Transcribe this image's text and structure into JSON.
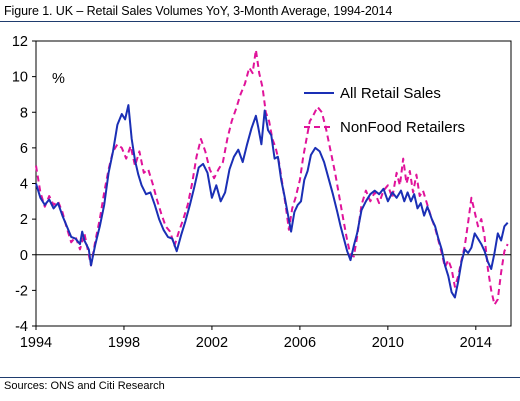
{
  "header": {
    "title": "Figure 1. UK – Retail Sales Volumes YoY, 3-Month Average, 1994-2014"
  },
  "footer": {
    "source": "Sources: ONS and Citi Research"
  },
  "chart_data": {
    "type": "line",
    "unit_label": "%",
    "xlim": [
      1994.0,
      2015.6
    ],
    "ylim": [
      -4,
      12
    ],
    "x_ticks": [
      1994,
      1998,
      2002,
      2006,
      2010,
      2014
    ],
    "y_ticks": [
      -4,
      -2,
      0,
      2,
      4,
      6,
      8,
      10,
      12
    ],
    "grid": false,
    "legend_position": "top-right",
    "series": [
      {
        "name": "All Retail Sales",
        "color": "#1a2fb5",
        "style": "solid",
        "points": [
          [
            1994.0,
            4.0
          ],
          [
            1994.2,
            3.2
          ],
          [
            1994.4,
            2.8
          ],
          [
            1994.6,
            3.1
          ],
          [
            1994.8,
            2.6
          ],
          [
            1995.0,
            2.9
          ],
          [
            1995.2,
            2.2
          ],
          [
            1995.4,
            1.6
          ],
          [
            1995.6,
            1.0
          ],
          [
            1995.8,
            0.9
          ],
          [
            1996.0,
            0.6
          ],
          [
            1996.1,
            1.3
          ],
          [
            1996.2,
            0.8
          ],
          [
            1996.4,
            0.3
          ],
          [
            1996.5,
            -0.6
          ],
          [
            1996.7,
            0.6
          ],
          [
            1996.9,
            1.6
          ],
          [
            1997.1,
            2.8
          ],
          [
            1997.3,
            4.6
          ],
          [
            1997.5,
            5.8
          ],
          [
            1997.7,
            7.3
          ],
          [
            1997.9,
            7.9
          ],
          [
            1998.05,
            7.6
          ],
          [
            1998.2,
            8.4
          ],
          [
            1998.35,
            6.5
          ],
          [
            1998.5,
            5.3
          ],
          [
            1998.65,
            4.5
          ],
          [
            1998.8,
            3.9
          ],
          [
            1999.0,
            3.4
          ],
          [
            1999.2,
            3.5
          ],
          [
            1999.4,
            2.8
          ],
          [
            1999.6,
            2.0
          ],
          [
            1999.8,
            1.4
          ],
          [
            2000.0,
            1.0
          ],
          [
            2000.2,
            0.9
          ],
          [
            2000.4,
            0.2
          ],
          [
            2000.6,
            1.1
          ],
          [
            2000.8,
            1.9
          ],
          [
            2001.0,
            2.8
          ],
          [
            2001.2,
            3.8
          ],
          [
            2001.4,
            4.9
          ],
          [
            2001.6,
            5.1
          ],
          [
            2001.8,
            4.6
          ],
          [
            2002.0,
            3.2
          ],
          [
            2002.2,
            3.9
          ],
          [
            2002.4,
            3.0
          ],
          [
            2002.6,
            3.5
          ],
          [
            2002.8,
            4.8
          ],
          [
            2003.0,
            5.5
          ],
          [
            2003.2,
            5.9
          ],
          [
            2003.4,
            5.2
          ],
          [
            2003.6,
            6.2
          ],
          [
            2003.8,
            7.1
          ],
          [
            2004.0,
            7.8
          ],
          [
            2004.1,
            7.2
          ],
          [
            2004.25,
            6.2
          ],
          [
            2004.4,
            8.1
          ],
          [
            2004.55,
            7.0
          ],
          [
            2004.7,
            6.7
          ],
          [
            2004.85,
            5.4
          ],
          [
            2005.0,
            5.5
          ],
          [
            2005.15,
            4.2
          ],
          [
            2005.3,
            3.3
          ],
          [
            2005.45,
            2.3
          ],
          [
            2005.6,
            1.3
          ],
          [
            2005.75,
            2.4
          ],
          [
            2005.9,
            2.8
          ],
          [
            2006.05,
            3.0
          ],
          [
            2006.2,
            4.2
          ],
          [
            2006.35,
            4.7
          ],
          [
            2006.5,
            5.6
          ],
          [
            2006.7,
            6.0
          ],
          [
            2006.9,
            5.8
          ],
          [
            2007.1,
            5.2
          ],
          [
            2007.3,
            4.3
          ],
          [
            2007.5,
            3.4
          ],
          [
            2007.7,
            2.4
          ],
          [
            2007.85,
            1.6
          ],
          [
            2008.0,
            0.9
          ],
          [
            2008.15,
            0.2
          ],
          [
            2008.3,
            -0.3
          ],
          [
            2008.45,
            0.5
          ],
          [
            2008.6,
            1.2
          ],
          [
            2008.8,
            2.5
          ],
          [
            2009.0,
            3.0
          ],
          [
            2009.2,
            3.4
          ],
          [
            2009.4,
            3.6
          ],
          [
            2009.6,
            3.4
          ],
          [
            2009.8,
            3.7
          ],
          [
            2010.0,
            3.0
          ],
          [
            2010.2,
            3.5
          ],
          [
            2010.4,
            3.2
          ],
          [
            2010.6,
            3.6
          ],
          [
            2010.75,
            3.0
          ],
          [
            2010.9,
            3.5
          ],
          [
            2011.05,
            3.0
          ],
          [
            2011.2,
            3.4
          ],
          [
            2011.35,
            2.6
          ],
          [
            2011.5,
            2.9
          ],
          [
            2011.65,
            2.2
          ],
          [
            2011.8,
            2.7
          ],
          [
            2012.0,
            2.0
          ],
          [
            2012.15,
            1.6
          ],
          [
            2012.3,
            0.9
          ],
          [
            2012.45,
            0.3
          ],
          [
            2012.6,
            -0.6
          ],
          [
            2012.75,
            -1.2
          ],
          [
            2012.9,
            -2.1
          ],
          [
            2013.05,
            -2.4
          ],
          [
            2013.2,
            -1.5
          ],
          [
            2013.35,
            -0.4
          ],
          [
            2013.5,
            0.3
          ],
          [
            2013.65,
            0.1
          ],
          [
            2013.8,
            0.4
          ],
          [
            2013.95,
            1.2
          ],
          [
            2014.1,
            0.9
          ],
          [
            2014.25,
            0.6
          ],
          [
            2014.4,
            0.2
          ],
          [
            2014.55,
            -0.4
          ],
          [
            2014.7,
            -0.8
          ],
          [
            2014.85,
            0.1
          ],
          [
            2015.0,
            1.2
          ],
          [
            2015.15,
            0.8
          ],
          [
            2015.3,
            1.6
          ],
          [
            2015.45,
            1.8
          ]
        ]
      },
      {
        "name": "NonFood Retailers",
        "color": "#e0139a",
        "style": "dashed",
        "points": [
          [
            1994.0,
            5.0
          ],
          [
            1994.2,
            3.5
          ],
          [
            1994.4,
            2.7
          ],
          [
            1994.6,
            3.3
          ],
          [
            1994.8,
            2.8
          ],
          [
            1995.0,
            3.0
          ],
          [
            1995.2,
            2.4
          ],
          [
            1995.4,
            1.5
          ],
          [
            1995.6,
            0.7
          ],
          [
            1995.8,
            1.0
          ],
          [
            1996.0,
            0.3
          ],
          [
            1996.2,
            1.2
          ],
          [
            1996.4,
            0.0
          ],
          [
            1996.5,
            -0.6
          ],
          [
            1996.7,
            0.8
          ],
          [
            1996.9,
            2.0
          ],
          [
            1997.1,
            3.5
          ],
          [
            1997.3,
            4.8
          ],
          [
            1997.5,
            5.8
          ],
          [
            1997.7,
            6.2
          ],
          [
            1997.9,
            6.0
          ],
          [
            1998.1,
            5.4
          ],
          [
            1998.3,
            6.1
          ],
          [
            1998.5,
            5.0
          ],
          [
            1998.7,
            5.8
          ],
          [
            1998.9,
            4.6
          ],
          [
            1999.1,
            4.8
          ],
          [
            1999.3,
            4.0
          ],
          [
            1999.5,
            3.1
          ],
          [
            1999.7,
            2.3
          ],
          [
            1999.9,
            1.6
          ],
          [
            2000.1,
            1.3
          ],
          [
            2000.3,
            0.5
          ],
          [
            2000.5,
            1.3
          ],
          [
            2000.7,
            2.0
          ],
          [
            2000.9,
            2.8
          ],
          [
            2001.1,
            4.0
          ],
          [
            2001.3,
            5.5
          ],
          [
            2001.5,
            6.5
          ],
          [
            2001.7,
            5.8
          ],
          [
            2001.9,
            4.8
          ],
          [
            2002.1,
            4.3
          ],
          [
            2002.3,
            4.8
          ],
          [
            2002.5,
            5.2
          ],
          [
            2002.7,
            6.5
          ],
          [
            2002.9,
            7.5
          ],
          [
            2003.1,
            8.2
          ],
          [
            2003.3,
            9.0
          ],
          [
            2003.5,
            9.6
          ],
          [
            2003.7,
            10.5
          ],
          [
            2003.85,
            10.2
          ],
          [
            2004.0,
            11.5
          ],
          [
            2004.15,
            10.2
          ],
          [
            2004.3,
            9.4
          ],
          [
            2004.45,
            8.0
          ],
          [
            2004.6,
            7.5
          ],
          [
            2004.75,
            6.5
          ],
          [
            2004.9,
            6.0
          ],
          [
            2005.05,
            5.2
          ],
          [
            2005.2,
            4.0
          ],
          [
            2005.35,
            2.8
          ],
          [
            2005.5,
            1.4
          ],
          [
            2005.65,
            2.6
          ],
          [
            2005.8,
            3.2
          ],
          [
            2006.0,
            4.2
          ],
          [
            2006.15,
            5.5
          ],
          [
            2006.3,
            6.5
          ],
          [
            2006.45,
            7.5
          ],
          [
            2006.6,
            7.8
          ],
          [
            2006.8,
            8.3
          ],
          [
            2007.0,
            8.0
          ],
          [
            2007.2,
            7.0
          ],
          [
            2007.4,
            5.8
          ],
          [
            2007.6,
            4.6
          ],
          [
            2007.8,
            3.2
          ],
          [
            2008.0,
            1.8
          ],
          [
            2008.15,
            0.8
          ],
          [
            2008.3,
            0.0
          ],
          [
            2008.45,
            -0.1
          ],
          [
            2008.6,
            1.0
          ],
          [
            2008.8,
            2.8
          ],
          [
            2009.0,
            3.6
          ],
          [
            2009.2,
            3.0
          ],
          [
            2009.4,
            3.5
          ],
          [
            2009.6,
            2.9
          ],
          [
            2009.8,
            3.6
          ],
          [
            2010.0,
            3.9
          ],
          [
            2010.2,
            3.2
          ],
          [
            2010.4,
            4.6
          ],
          [
            2010.55,
            3.9
          ],
          [
            2010.7,
            5.4
          ],
          [
            2010.85,
            4.0
          ],
          [
            2011.0,
            4.7
          ],
          [
            2011.15,
            3.5
          ],
          [
            2011.3,
            4.5
          ],
          [
            2011.45,
            3.3
          ],
          [
            2011.6,
            3.6
          ],
          [
            2011.8,
            2.8
          ],
          [
            2012.0,
            2.0
          ],
          [
            2012.15,
            1.5
          ],
          [
            2012.3,
            0.8
          ],
          [
            2012.45,
            0.1
          ],
          [
            2012.6,
            -0.7
          ],
          [
            2012.75,
            -0.3
          ],
          [
            2012.9,
            -0.8
          ],
          [
            2013.05,
            -1.8
          ],
          [
            2013.2,
            -1.2
          ],
          [
            2013.35,
            -0.3
          ],
          [
            2013.5,
            0.5
          ],
          [
            2013.65,
            1.8
          ],
          [
            2013.8,
            3.2
          ],
          [
            2013.95,
            2.4
          ],
          [
            2014.1,
            1.6
          ],
          [
            2014.25,
            2.0
          ],
          [
            2014.4,
            1.0
          ],
          [
            2014.55,
            -0.8
          ],
          [
            2014.7,
            -2.0
          ],
          [
            2014.85,
            -2.8
          ],
          [
            2015.0,
            -2.5
          ],
          [
            2015.15,
            -1.0
          ],
          [
            2015.3,
            0.2
          ],
          [
            2015.45,
            0.6
          ]
        ]
      }
    ]
  }
}
